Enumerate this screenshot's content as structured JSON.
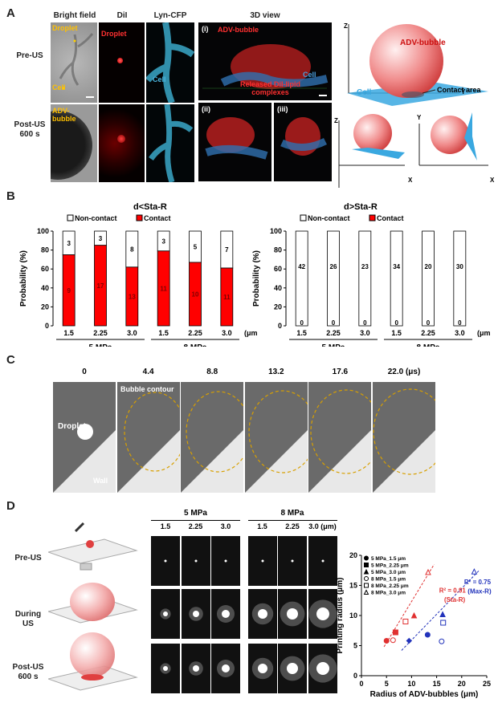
{
  "panelA": {
    "letter": "A",
    "col_headers": [
      "Bright field",
      "DiI",
      "Lyn-CFP",
      "3D view"
    ],
    "row_labels": [
      "Pre-US",
      "Post-US\n600 s"
    ],
    "pre_droplet_label": "Droplet",
    "pre_cell_label": "Cell",
    "post_bubble_label": "ADV-\nbubble",
    "dil_droplet_label": "Droplet",
    "cfp_cell_label": "Cell",
    "view_i": "(i)",
    "view_ii": "(ii)",
    "view_iii": "(iii)",
    "view_bubble_label": "ADV-bubble",
    "view_cell_label": "Cell",
    "view_released_label": "Released DiI-lipid\ncomplexes",
    "schematic": {
      "z_axis": "Z",
      "y_axis": "Y",
      "x_axis": "X",
      "bubble_label": "ADV-bubble",
      "cell_label": "Cell",
      "contact_label": "Contact area"
    }
  },
  "panelB": {
    "letter": "B",
    "left_chart_title": "d<Sta-R",
    "right_chart_title": "d>Sta-R",
    "legend_noncontact": "Non-contact",
    "legend_contact": "Contact",
    "ylabel": "Probability (%)",
    "unit": "(μm)",
    "groups": [
      "5 MPa",
      "8 MPa"
    ],
    "colors": {
      "contact": "#ff0000",
      "noncontact": "#ffffff"
    }
  },
  "chart_data": [
    {
      "type": "bar",
      "title": "d<Sta-R",
      "categories": [
        "1.5",
        "2.25",
        "3.0",
        "1.5",
        "2.25",
        "3.0"
      ],
      "ylabel": "Probability (%)",
      "ylim": [
        0,
        100
      ],
      "yticks": [
        "0",
        "20",
        "40",
        "60",
        "80",
        "100"
      ],
      "series": [
        {
          "name": "Contact",
          "values": [
            75,
            85,
            62,
            79,
            67,
            61
          ],
          "counts": [
            "9",
            "17",
            "13",
            "11",
            "10",
            "11"
          ]
        },
        {
          "name": "Non-contact",
          "values": [
            25,
            15,
            38,
            21,
            33,
            39
          ],
          "counts": [
            "3",
            "3",
            "8",
            "3",
            "5",
            "7"
          ]
        }
      ]
    },
    {
      "type": "bar",
      "title": "d>Sta-R",
      "categories": [
        "1.5",
        "2.25",
        "3.0",
        "1.5",
        "2.25",
        "3.0"
      ],
      "ylabel": "Probability (%)",
      "ylim": [
        0,
        100
      ],
      "yticks": [
        "0",
        "20",
        "40",
        "60",
        "80",
        "100"
      ],
      "series": [
        {
          "name": "Contact",
          "values": [
            0,
            0,
            0,
            0,
            0,
            0
          ],
          "counts": [
            "0",
            "0",
            "0",
            "0",
            "0",
            "0"
          ]
        },
        {
          "name": "Non-contact",
          "values": [
            100,
            100,
            100,
            100,
            100,
            100
          ],
          "counts": [
            "42",
            "26",
            "23",
            "34",
            "20",
            "30"
          ]
        }
      ]
    },
    {
      "type": "scatter",
      "xlabel": "Radius of ADV-bubbles (μm)",
      "ylabel": "Printing radius (μm)",
      "xlim": [
        0,
        25
      ],
      "ylim": [
        0,
        20
      ],
      "xticks": [
        "0",
        "5",
        "10",
        "15",
        "20",
        "25"
      ],
      "yticks": [
        "0",
        "5",
        "10",
        "15",
        "20"
      ],
      "series": [
        {
          "name": "5 MPa_1.5 μm",
          "marker": "circle",
          "filled": true,
          "color": "#e03030",
          "x": [
            5.0
          ],
          "y": [
            5.8
          ]
        },
        {
          "name": "5 MPa_2.25 μm",
          "marker": "square",
          "filled": true,
          "color": "#e03030",
          "x": [
            6.8
          ],
          "y": [
            7.2
          ]
        },
        {
          "name": "5 MPa_3.0 μm",
          "marker": "triangle",
          "filled": true,
          "color": "#e03030",
          "x": [
            10.5
          ],
          "y": [
            10.0
          ]
        },
        {
          "name": "8 MPa_1.5 μm",
          "marker": "circle",
          "filled": false,
          "color": "#e03030",
          "x": [
            6.3
          ],
          "y": [
            5.9
          ]
        },
        {
          "name": "8 MPa_2.25 μm",
          "marker": "square",
          "filled": false,
          "color": "#e03030",
          "x": [
            8.8
          ],
          "y": [
            9.0
          ]
        },
        {
          "name": "8 MPa_3.0 μm",
          "marker": "triangle",
          "filled": false,
          "color": "#e03030",
          "x": [
            13.3
          ],
          "y": [
            17.2
          ]
        },
        {
          "name": "5 MPa_1.5 μm (Max-R)",
          "marker": "circle",
          "filled": true,
          "color": "#2233bb",
          "x": [
            13.2
          ],
          "y": [
            6.8
          ]
        },
        {
          "name": "5 MPa_2.25 μm (Max-R)",
          "marker": "diamond",
          "filled": true,
          "color": "#2233bb",
          "x": [
            9.5
          ],
          "y": [
            5.8
          ]
        },
        {
          "name": "5 MPa_3.0 μm (Max-R)",
          "marker": "triangle",
          "filled": true,
          "color": "#2233bb",
          "x": [
            16.2
          ],
          "y": [
            10.2
          ]
        },
        {
          "name": "8 MPa_1.5 μm (Max-R)",
          "marker": "circle",
          "filled": false,
          "color": "#2233bb",
          "x": [
            16.0
          ],
          "y": [
            5.7
          ]
        },
        {
          "name": "8 MPa_2.25 μm (Max-R)",
          "marker": "square",
          "filled": false,
          "color": "#2233bb",
          "x": [
            16.3
          ],
          "y": [
            8.8
          ]
        },
        {
          "name": "8 MPa_3.0 μm (Max-R)",
          "marker": "triangle",
          "filled": false,
          "color": "#2233bb",
          "x": [
            22.5
          ],
          "y": [
            17.3
          ]
        }
      ],
      "fits": [
        {
          "label": "R² = 0.91",
          "sublabel": "(Sta-R)",
          "color": "#e03030",
          "x": [
            4.5,
            14.5
          ],
          "y": [
            4.8,
            18.5
          ]
        },
        {
          "label": "R² = 0.75",
          "sublabel": "(Max-R)",
          "color": "#2233bb",
          "x": [
            8.0,
            23.5
          ],
          "y": [
            4.2,
            17.5
          ]
        }
      ]
    }
  ],
  "panelC": {
    "letter": "C",
    "times": [
      "0",
      "4.4",
      "8.8",
      "13.2",
      "17.6",
      "22.0 (μs)"
    ],
    "bubble_contour_label": "Bubble contour",
    "droplet_label": "Droplet",
    "wall_label": "Wall"
  },
  "panelD": {
    "letter": "D",
    "groups": [
      "5 MPa",
      "8 MPa"
    ],
    "col_labels": [
      "1.5",
      "2.25",
      "3.0",
      "1.5",
      "2.25",
      "3.0 (μm)"
    ],
    "row_labels": [
      "Pre-US",
      "During\nUS",
      "Post-US\n600 s"
    ],
    "legend": [
      "5 MPa_1.5 μm",
      "5 MPa_2.25 μm",
      "5 MPa_3.0 μm",
      "8 MPa_1.5 μm",
      "8 MPa_2.25 μm",
      "8 MPa_3.0 μm"
    ]
  }
}
